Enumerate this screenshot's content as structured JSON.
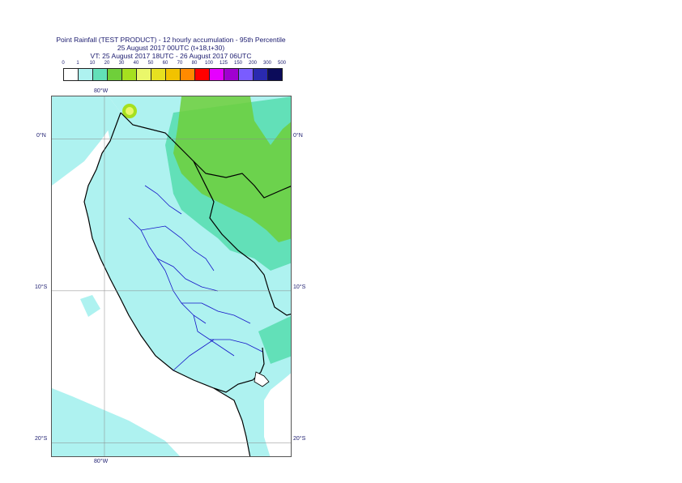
{
  "title": {
    "line1": "Point Rainfall (TEST PRODUCT) - 12 hourly accumulation - 95th Percentile",
    "line2": "25 August 2017 00UTC (t+18,t+30)",
    "line3": "VT: 25 August 2017 18UTC - 26 August 2017 06UTC"
  },
  "legend": {
    "thresholds": [
      "0",
      "1",
      "10",
      "20",
      "30",
      "40",
      "50",
      "60",
      "70",
      "80",
      "100",
      "125",
      "150",
      "200",
      "300",
      "500"
    ],
    "colors": [
      "#ffffff",
      "#aef2f0",
      "#62e0b8",
      "#6fcf3a",
      "#a6e01f",
      "#eaf76a",
      "#e7e020",
      "#f2c200",
      "#ff8a00",
      "#ff0000",
      "#e600ff",
      "#a000d0",
      "#7a5cff",
      "#2a2ab0",
      "#0b0b5a"
    ]
  },
  "axes": {
    "lon_top": "80°W",
    "lon_bottom": "80°W",
    "lat_labels": [
      "0°N",
      "10°S",
      "20°S"
    ]
  },
  "map": {
    "bounds": {
      "lon_min": -83.5,
      "lon_max": -67.5,
      "lat_min": -21.0,
      "lat_max": 2.8
    },
    "grid_lons": [
      -80
    ],
    "grid_lats": [
      0,
      -10,
      -20
    ],
    "colors": {
      "ocean_light": "#aef2f0",
      "land_light": "#aef2f0",
      "land_mid": "#62e0b8",
      "land_high": "#6fcf3a",
      "peak": "#eaf76a",
      "coast": "#000000",
      "admin": "#1414c8"
    }
  }
}
